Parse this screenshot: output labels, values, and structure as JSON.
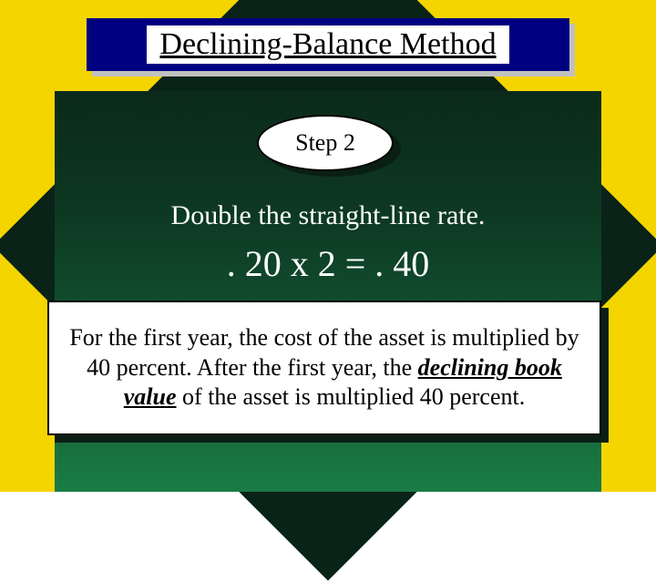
{
  "slide": {
    "background_color": "#f4d500",
    "diamond_color": "#0a2318",
    "gradient_top": "#0b2a1a",
    "gradient_bottom": "#1a7c44"
  },
  "title": {
    "text": "Declining-Balance Method",
    "box_color": "#000080",
    "shadow_color": "#c0c0c0",
    "text_color": "#000000",
    "text_bg": "#ffffff",
    "fontsize": 34
  },
  "step": {
    "label": "Step 2",
    "ellipse_fill": "#ffffff",
    "ellipse_border": "#000000",
    "shadow_color": "#0a1f14",
    "fontsize": 26
  },
  "instruction": {
    "text": "Double the straight-line rate.",
    "color": "#ffffff",
    "fontsize": 30
  },
  "equation": {
    "text": ". 20 x 2 = . 40",
    "color": "#ffffff",
    "fontsize": 40
  },
  "description": {
    "prefix": "For the first year, the cost of the asset is multiplied by 40 percent.  After the first year, the ",
    "emphasis": "declining book value",
    "suffix": " of the asset is multiplied 40 percent.",
    "box_fill": "#ffffff",
    "box_border": "#000000",
    "shadow_color": "#0a1f14",
    "fontsize": 26
  }
}
